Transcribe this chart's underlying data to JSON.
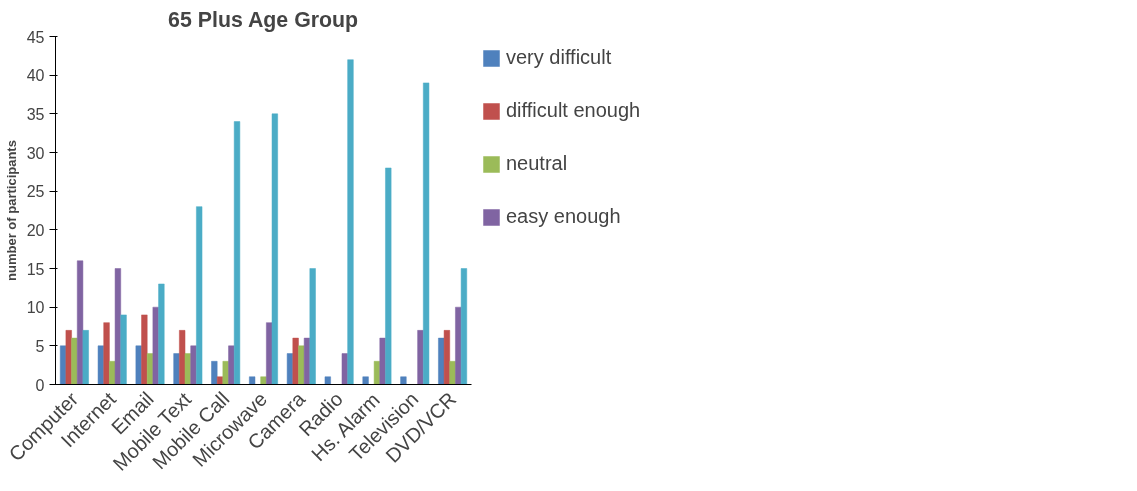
{
  "chart_data": {
    "type": "bar",
    "title": "65 Plus Age Group",
    "ylabel": "number of participants",
    "categories": [
      "Computer",
      "Internet",
      "Email",
      "Mobile Text",
      "Mobile Call",
      "Microwave",
      "Camera",
      "Radio",
      "Hs. Alarm",
      "Television",
      "DVD/VCR"
    ],
    "series": [
      {
        "name": "very difficult",
        "color": "#4f81bd",
        "values": [
          5,
          5,
          5,
          4,
          3,
          1,
          4,
          1,
          1,
          1,
          6
        ]
      },
      {
        "name": "difficult enough",
        "color": "#c0504d",
        "values": [
          7,
          8,
          9,
          7,
          1,
          0,
          6,
          0,
          0,
          0,
          7
        ]
      },
      {
        "name": "neutral",
        "color": "#9bbb59",
        "values": [
          6,
          3,
          4,
          4,
          3,
          1,
          5,
          0,
          3,
          0,
          3
        ]
      },
      {
        "name": "easy enough",
        "color": "#8064a2",
        "values": [
          16,
          15,
          10,
          5,
          5,
          8,
          6,
          4,
          6,
          7,
          10
        ]
      },
      {
        "color": "#4bacc6",
        "values": [
          7,
          9,
          13,
          23,
          34,
          35,
          15,
          42,
          28,
          39,
          15
        ]
      }
    ],
    "ylim": [
      0,
      45
    ],
    "yticks": [
      0,
      5,
      10,
      15,
      20,
      25,
      30,
      35,
      40,
      45
    ],
    "grid": false,
    "legend": "right"
  }
}
